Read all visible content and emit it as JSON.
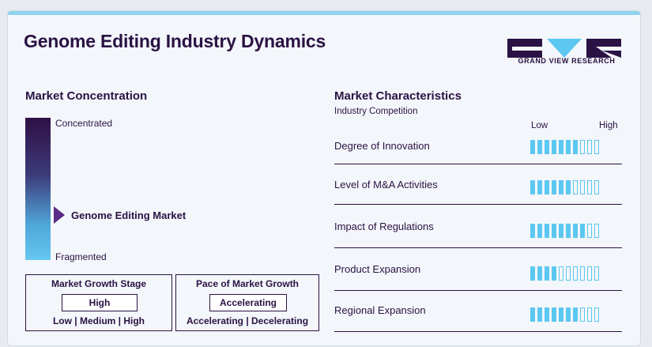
{
  "header": {
    "title": "Genome Editing Industry Dynamics",
    "logo_text": "GRAND VIEW RESEARCH"
  },
  "concentration": {
    "title": "Market Concentration",
    "top_label": "Concentrated",
    "bottom_label": "Fragmented",
    "marker_label": "Genome Editing Market",
    "marker_level": 0.68
  },
  "growth_stage": {
    "title": "Market Growth Stage",
    "value": "High",
    "options": "Low | Medium | High"
  },
  "growth_pace": {
    "title": "Pace of Market Growth",
    "value": "Accelerating",
    "options": "Accelerating | Decelerating"
  },
  "characteristics": {
    "title": "Market Characteristics",
    "subtitle": "Industry Competition",
    "low_label": "Low",
    "high_label": "High",
    "max_level": 10,
    "rows": [
      {
        "label": "Degree of Innovation",
        "level": 7
      },
      {
        "label": "Level of M&A Activities",
        "level": 6
      },
      {
        "label": "Impact of Regulations",
        "level": 8
      },
      {
        "label": "Product Expansion",
        "level": 4
      },
      {
        "label": "Regional Expansion",
        "level": 7
      }
    ]
  },
  "colors": {
    "primary": "#2a1244",
    "accent": "#5cc8f1",
    "marker": "#5a2a86"
  }
}
